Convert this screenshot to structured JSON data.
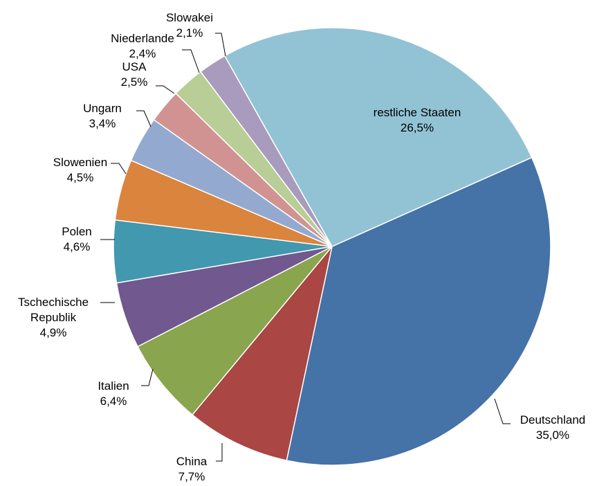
{
  "chart_data": {
    "type": "pie",
    "title": "",
    "start_angle_deg": 66,
    "direction": "clockwise",
    "slices": [
      {
        "name": "Deutschland",
        "value": 35.0,
        "label_lines": [
          "Deutschland"
        ],
        "value_label": "35,0%",
        "color": "#4572a7"
      },
      {
        "name": "China",
        "value": 7.7,
        "label_lines": [
          "China"
        ],
        "value_label": "7,7%",
        "color": "#aa4643"
      },
      {
        "name": "Italien",
        "value": 6.4,
        "label_lines": [
          "Italien"
        ],
        "value_label": "6,4%",
        "color": "#89a54e"
      },
      {
        "name": "Tschechische Republik",
        "value": 4.9,
        "label_lines": [
          "Tschechische",
          "Republik"
        ],
        "value_label": "4,9%",
        "color": "#71588f"
      },
      {
        "name": "Polen",
        "value": 4.6,
        "label_lines": [
          "Polen"
        ],
        "value_label": "4,6%",
        "color": "#4198af"
      },
      {
        "name": "Slowenien",
        "value": 4.5,
        "label_lines": [
          "Slowenien"
        ],
        "value_label": "4,5%",
        "color": "#db843d"
      },
      {
        "name": "Ungarn",
        "value": 3.4,
        "label_lines": [
          "Ungarn"
        ],
        "value_label": "3,4%",
        "color": "#93a9cf"
      },
      {
        "name": "USA",
        "value": 2.5,
        "label_lines": [
          "USA"
        ],
        "value_label": "2,5%",
        "color": "#d19392"
      },
      {
        "name": "Niederlande",
        "value": 2.4,
        "label_lines": [
          "Niederlande"
        ],
        "value_label": "2,4%",
        "color": "#b9cd96"
      },
      {
        "name": "Slowakei",
        "value": 2.1,
        "label_lines": [
          "Slowakei"
        ],
        "value_label": "2,1%",
        "color": "#a99bbd"
      },
      {
        "name": "restliche Staaten",
        "value": 26.5,
        "label_lines": [
          "restliche Staaten"
        ],
        "value_label": "26,5%",
        "color": "#92c3d4"
      }
    ]
  }
}
